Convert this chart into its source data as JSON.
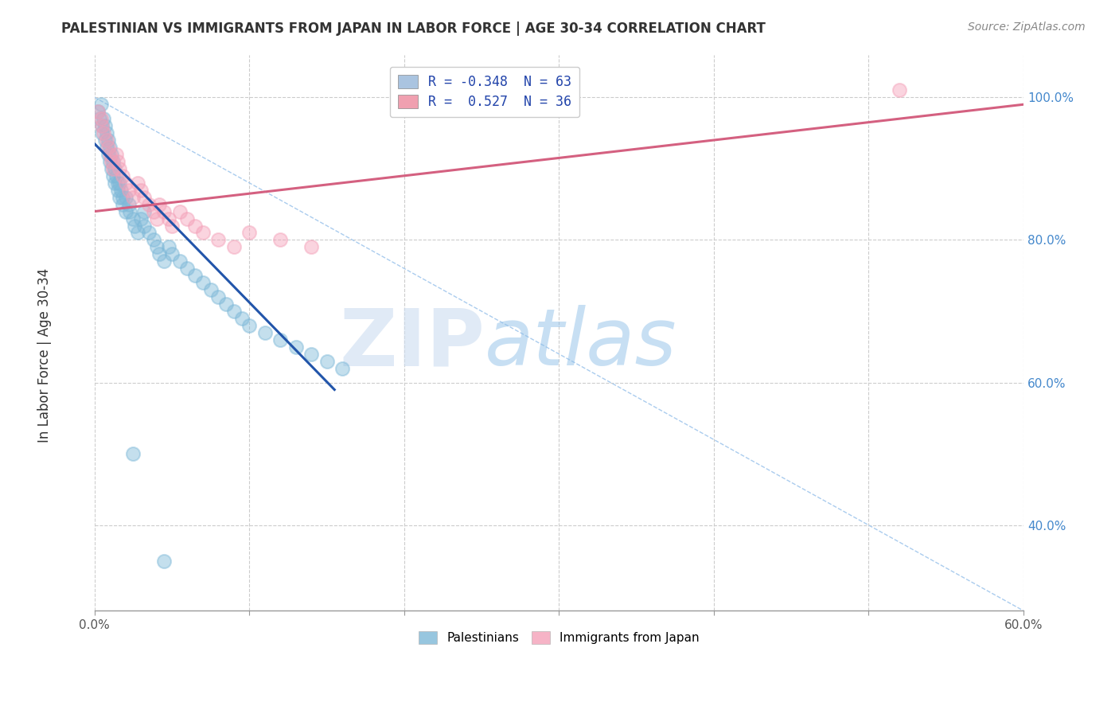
{
  "title": "PALESTINIAN VS IMMIGRANTS FROM JAPAN IN LABOR FORCE | AGE 30-34 CORRELATION CHART",
  "source": "Source: ZipAtlas.com",
  "ylabel": "In Labor Force | Age 30-34",
  "xlim": [
    0.0,
    0.6
  ],
  "ylim": [
    0.28,
    1.06
  ],
  "xticks": [
    0.0,
    0.1,
    0.2,
    0.3,
    0.4,
    0.5,
    0.6
  ],
  "xticklabels": [
    "0.0%",
    "",
    "",
    "",
    "",
    "",
    "60.0%"
  ],
  "yticks": [
    0.4,
    0.6,
    0.8,
    1.0
  ],
  "yticklabels": [
    "40.0%",
    "60.0%",
    "80.0%",
    "100.0%"
  ],
  "legend_entries": [
    {
      "label": "R = -0.348  N = 63",
      "color": "#aac4e0"
    },
    {
      "label": "R =  0.527  N = 36",
      "color": "#f0a0b0"
    }
  ],
  "legend_labels": [
    "Palestinians",
    "Immigrants from Japan"
  ],
  "blue_color": "#7db8d8",
  "pink_color": "#f4a0b8",
  "blue_line_color": "#2255aa",
  "pink_line_color": "#d46080",
  "blue_scatter_x": [
    0.002,
    0.003,
    0.004,
    0.005,
    0.005,
    0.006,
    0.007,
    0.007,
    0.008,
    0.008,
    0.009,
    0.009,
    0.01,
    0.01,
    0.011,
    0.011,
    0.012,
    0.012,
    0.013,
    0.013,
    0.014,
    0.015,
    0.015,
    0.016,
    0.016,
    0.017,
    0.018,
    0.018,
    0.02,
    0.02,
    0.022,
    0.023,
    0.025,
    0.026,
    0.028,
    0.03,
    0.032,
    0.035,
    0.038,
    0.04,
    0.042,
    0.045,
    0.048,
    0.05,
    0.055,
    0.06,
    0.065,
    0.07,
    0.075,
    0.08,
    0.085,
    0.09,
    0.095,
    0.1,
    0.11,
    0.12,
    0.13,
    0.14,
    0.15,
    0.16,
    0.025,
    0.032,
    0.045
  ],
  "blue_scatter_y": [
    0.98,
    0.97,
    0.99,
    0.96,
    0.95,
    0.97,
    0.94,
    0.96,
    0.93,
    0.95,
    0.92,
    0.94,
    0.91,
    0.93,
    0.92,
    0.9,
    0.91,
    0.89,
    0.9,
    0.88,
    0.89,
    0.88,
    0.87,
    0.86,
    0.88,
    0.87,
    0.86,
    0.85,
    0.84,
    0.86,
    0.85,
    0.84,
    0.83,
    0.82,
    0.81,
    0.83,
    0.82,
    0.81,
    0.8,
    0.79,
    0.78,
    0.77,
    0.79,
    0.78,
    0.77,
    0.76,
    0.75,
    0.74,
    0.73,
    0.72,
    0.71,
    0.7,
    0.69,
    0.68,
    0.67,
    0.66,
    0.65,
    0.64,
    0.63,
    0.62,
    0.5,
    0.84,
    0.35
  ],
  "pink_scatter_x": [
    0.002,
    0.004,
    0.005,
    0.006,
    0.008,
    0.009,
    0.01,
    0.011,
    0.012,
    0.014,
    0.015,
    0.016,
    0.018,
    0.02,
    0.022,
    0.025,
    0.028,
    0.03,
    0.032,
    0.035,
    0.038,
    0.04,
    0.042,
    0.045,
    0.048,
    0.05,
    0.055,
    0.06,
    0.065,
    0.07,
    0.08,
    0.09,
    0.1,
    0.12,
    0.14,
    0.52
  ],
  "pink_scatter_y": [
    0.98,
    0.97,
    0.96,
    0.95,
    0.94,
    0.93,
    0.92,
    0.91,
    0.9,
    0.92,
    0.91,
    0.9,
    0.89,
    0.88,
    0.87,
    0.86,
    0.88,
    0.87,
    0.86,
    0.85,
    0.84,
    0.83,
    0.85,
    0.84,
    0.83,
    0.82,
    0.84,
    0.83,
    0.82,
    0.81,
    0.8,
    0.79,
    0.81,
    0.8,
    0.79,
    1.01
  ],
  "blue_trend_x": [
    0.0,
    0.155
  ],
  "blue_trend_y": [
    0.935,
    0.59
  ],
  "pink_trend_x": [
    0.0,
    0.6
  ],
  "pink_trend_y": [
    0.84,
    0.99
  ],
  "diag_line_x": [
    0.0,
    0.6
  ],
  "diag_line_y": [
    1.0,
    0.28
  ],
  "watermark_zip": "ZIP",
  "watermark_atlas": "atlas",
  "background_color": "#ffffff",
  "grid_color": "#cccccc",
  "axis_color": "#999999"
}
